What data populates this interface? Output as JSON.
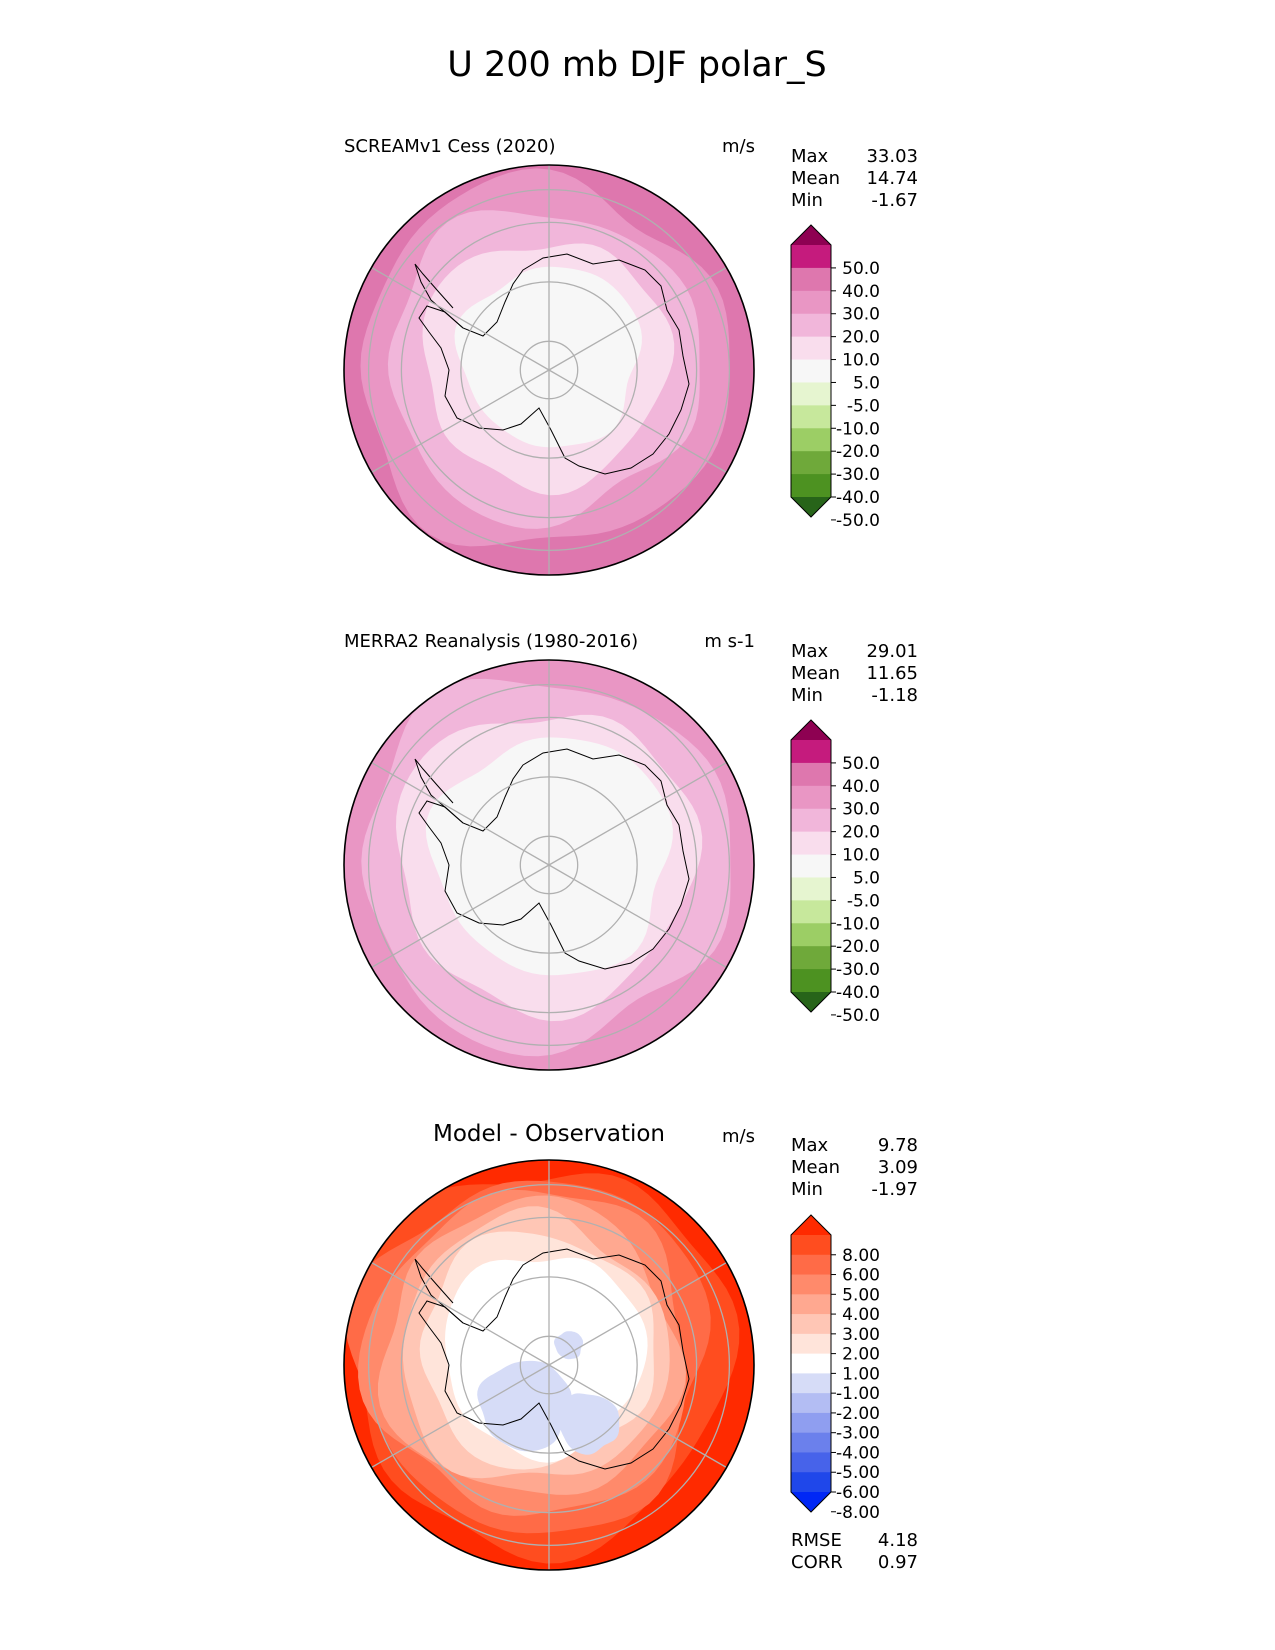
{
  "figure": {
    "title": "U 200 mb DJF polar_S"
  },
  "chart_data": [
    {
      "type": "heatmap",
      "projection": "south-polar-stereographic",
      "title": "SCREAMv1 Cess (2020)",
      "units": "m/s",
      "stats": [
        {
          "label": "Max",
          "value": "33.03"
        },
        {
          "label": "Mean",
          "value": "14.74"
        },
        {
          "label": "Min",
          "value": "-1.67"
        }
      ],
      "colorbar": {
        "tick_labels": [
          "50.0",
          "40.0",
          "30.0",
          "20.0",
          "10.0",
          "5.0",
          "-5.0",
          "-10.0",
          "-20.0",
          "-30.0",
          "-40.0",
          "-50.0"
        ],
        "colors": [
          "#8e0152",
          "#c51b7d",
          "#de77ae",
          "#e996c4",
          "#f1b6da",
          "#f9dded",
          "#f7f7f7",
          "#e6f5d0",
          "#c7e89c",
          "#9cce65",
          "#6fa93a",
          "#4d9221",
          "#276419"
        ],
        "extend": "both"
      },
      "field_bands": [
        {
          "value": 26,
          "color": "#de77ae"
        },
        {
          "value": 22,
          "color": "#e996c4"
        },
        {
          "value": 15,
          "color": "#f1b6da"
        },
        {
          "value": 8,
          "color": "#f9dded"
        },
        {
          "value": 2,
          "color": "#f7f7f7"
        }
      ]
    },
    {
      "type": "heatmap",
      "projection": "south-polar-stereographic",
      "title": "MERRA2 Reanalysis (1980-2016)",
      "units": "m s-1",
      "stats": [
        {
          "label": "Max",
          "value": "29.01"
        },
        {
          "label": "Mean",
          "value": "11.65"
        },
        {
          "label": "Min",
          "value": "-1.18"
        }
      ],
      "colorbar": {
        "tick_labels": [
          "50.0",
          "40.0",
          "30.0",
          "20.0",
          "10.0",
          "5.0",
          "-5.0",
          "-10.0",
          "-20.0",
          "-30.0",
          "-40.0",
          "-50.0"
        ],
        "colors": [
          "#8e0152",
          "#c51b7d",
          "#de77ae",
          "#e996c4",
          "#f1b6da",
          "#f9dded",
          "#f7f7f7",
          "#e6f5d0",
          "#c7e89c",
          "#9cce65",
          "#6fa93a",
          "#4d9221",
          "#276419"
        ],
        "extend": "both"
      },
      "field_bands": [
        {
          "value": 22,
          "color": "#e996c4"
        },
        {
          "value": 15,
          "color": "#f1b6da"
        },
        {
          "value": 8,
          "color": "#f9dded"
        },
        {
          "value": 2,
          "color": "#f7f7f7"
        }
      ]
    },
    {
      "type": "heatmap",
      "projection": "south-polar-stereographic",
      "title": "Model - Observation",
      "units": "m/s",
      "stats": [
        {
          "label": "Max",
          "value": "9.78"
        },
        {
          "label": "Mean",
          "value": "3.09"
        },
        {
          "label": "Min",
          "value": "-1.97"
        }
      ],
      "colorbar": {
        "tick_labels": [
          "8.00",
          "6.00",
          "5.00",
          "4.00",
          "3.00",
          "2.00",
          "1.00",
          "-1.00",
          "-2.00",
          "-3.00",
          "-4.00",
          "-5.00",
          "-6.00",
          "-8.00"
        ],
        "colors": [
          "#ff2a00",
          "#ff4d1f",
          "#ff6b47",
          "#ff8a6b",
          "#ffa890",
          "#ffc6b5",
          "#ffe4da",
          "#ffffff",
          "#d6dcf7",
          "#b3bdf3",
          "#8f9ef0",
          "#6b80ec",
          "#4763ea",
          "#1f47ea",
          "#0027f5"
        ],
        "extend": "both"
      },
      "field_bands": [
        {
          "value": 9,
          "color": "#ff2a00"
        },
        {
          "value": 6.5,
          "color": "#ff4d1f"
        },
        {
          "value": 5.5,
          "color": "#ff6b47"
        },
        {
          "value": 4.5,
          "color": "#ff8a6b"
        },
        {
          "value": 3.5,
          "color": "#ffa890"
        },
        {
          "value": 2.5,
          "color": "#ffc6b5"
        },
        {
          "value": 1.5,
          "color": "#ffe4da"
        },
        {
          "value": 0,
          "color": "#ffffff"
        },
        {
          "value": -1.5,
          "color": "#d6dcf7"
        }
      ],
      "summary_stats": [
        {
          "label": "RMSE",
          "value": "4.18"
        },
        {
          "label": "CORR",
          "value": "0.97"
        }
      ]
    }
  ]
}
